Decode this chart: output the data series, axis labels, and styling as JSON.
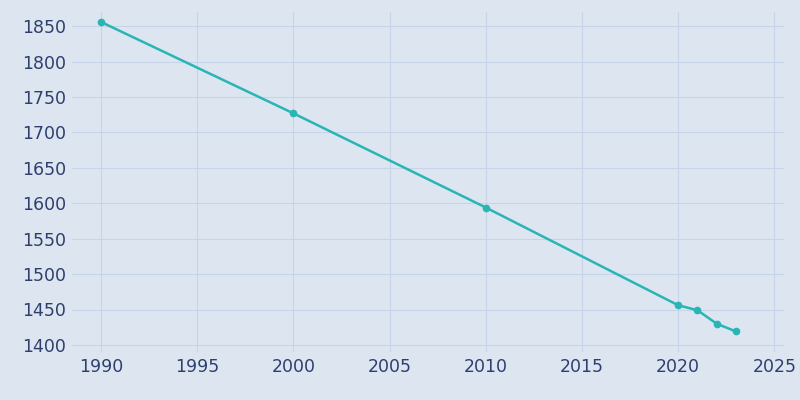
{
  "years": [
    1990,
    2000,
    2010,
    2020,
    2021,
    2022,
    2023
  ],
  "population": [
    1856,
    1727,
    1594,
    1456,
    1449,
    1430,
    1419
  ],
  "line_color": "#2ab5b5",
  "marker_color": "#2ab5b5",
  "background_color": "#dde6f0",
  "plot_bg_color": "#dde6f0",
  "grid_color": "#c5d4e8",
  "tick_label_color": "#2e3f6e",
  "xlim": [
    1988.5,
    2025.5
  ],
  "ylim": [
    1390,
    1870
  ],
  "yticks": [
    1400,
    1450,
    1500,
    1550,
    1600,
    1650,
    1700,
    1750,
    1800,
    1850
  ],
  "xticks": [
    1990,
    1995,
    2000,
    2005,
    2010,
    2015,
    2020,
    2025
  ],
  "tick_fontsize": 12.5,
  "line_width": 1.8,
  "marker_size": 4.5
}
